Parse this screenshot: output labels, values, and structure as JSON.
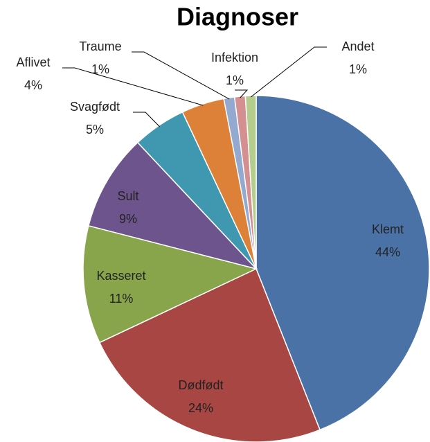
{
  "chart_data": {
    "type": "pie",
    "title": "Diagnoser",
    "categories": [
      "Klemt",
      "Dødfødt",
      "Kasseret",
      "Sult",
      "Svagfødt",
      "Aflivet",
      "Traume",
      "Infektion",
      "Andet"
    ],
    "values": [
      44,
      24,
      11,
      9,
      5,
      4,
      1,
      1,
      1
    ],
    "value_labels": [
      "44%",
      "24%",
      "11%",
      "9%",
      "5%",
      "4%",
      "1%",
      "1%",
      "1%"
    ],
    "colors": [
      "#4a72a6",
      "#a84643",
      "#88a54c",
      "#6e548d",
      "#3f98b0",
      "#dc8137",
      "#94a9d0",
      "#d49090",
      "#b4cc8c"
    ]
  }
}
